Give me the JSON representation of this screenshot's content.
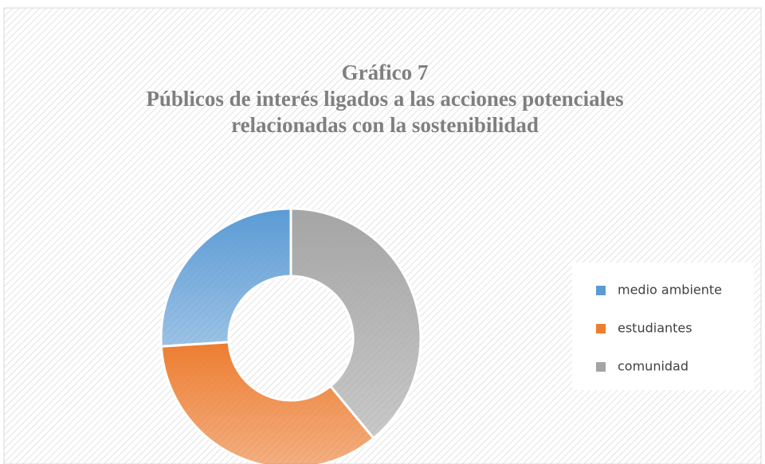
{
  "chart_data": {
    "type": "donut",
    "title": [
      "Gráfico 7",
      "Públicos de interés ligados a las acciones potenciales",
      "relacionadas con la sostenibilidad"
    ],
    "categories": [
      "medio ambiente",
      "estudiantes",
      "comunidad"
    ],
    "values": [
      26,
      35,
      39
    ],
    "colors": [
      "#5b9bd5",
      "#ed7d31",
      "#a5a5a5"
    ],
    "legend": "right"
  }
}
